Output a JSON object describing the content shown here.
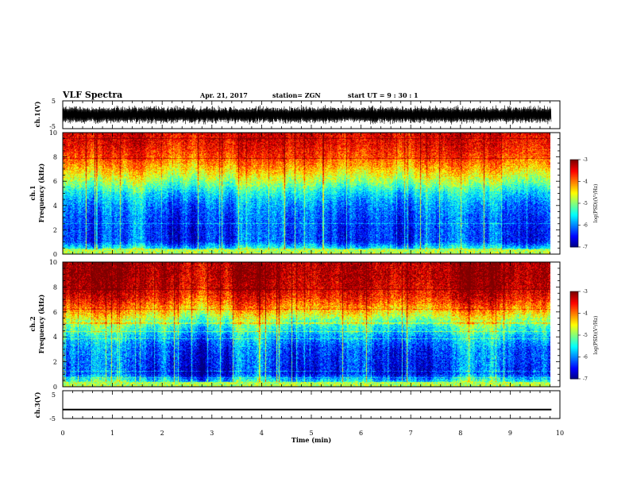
{
  "header": {
    "title": "VLF Spectra",
    "date": "Apr. 21, 2017",
    "station": "station= ZGN",
    "start_ut": "start  UT =   9 : 30 : 1"
  },
  "chart_data": [
    {
      "type": "line",
      "panel": "ch1-waveform",
      "ylabel": "ch.1(V)",
      "yticks": [
        "5",
        "-5"
      ],
      "ylim": [
        -5,
        5
      ],
      "xlim": [
        0,
        10
      ],
      "description_values": "dense oscillating VLF waveform, amplitude about -3.5 to +3.5 V"
    },
    {
      "type": "heatmap",
      "panel": "ch1-spectrogram",
      "ylabel_top": "ch.1",
      "ylabel": "Frequency  (kHz)",
      "yticks": [
        "0",
        "2",
        "4",
        "6",
        "8",
        "10"
      ],
      "ylim": [
        0,
        10
      ],
      "xlim": [
        0,
        9.83
      ],
      "colorbar": {
        "label": "log(PSD)(V²/Hz)",
        "ticks": [
          "-3",
          "-4",
          "-5",
          "-6",
          "-7"
        ],
        "range": [
          -7,
          -3
        ]
      },
      "profile_log_psd_by_freq": [
        {
          "f": 0.2,
          "v": -5.2
        },
        {
          "f": 1,
          "v": -6.3
        },
        {
          "f": 2,
          "v": -6.3
        },
        {
          "f": 3,
          "v": -6.2
        },
        {
          "f": 4,
          "v": -6.0
        },
        {
          "f": 5,
          "v": -5.6
        },
        {
          "f": 6,
          "v": -4.9
        },
        {
          "f": 7,
          "v": -4.3
        },
        {
          "f": 8,
          "v": -3.8
        },
        {
          "f": 9,
          "v": -3.5
        },
        {
          "f": 10,
          "v": -3.4
        }
      ]
    },
    {
      "type": "heatmap",
      "panel": "ch2-spectrogram",
      "ylabel_top": "ch.2",
      "ylabel": "Frequency  (kHz)",
      "yticks": [
        "0",
        "2",
        "4",
        "6",
        "8",
        "10"
      ],
      "ylim": [
        0,
        10
      ],
      "xlim": [
        0,
        9.83
      ],
      "colorbar": {
        "label": "log(PSD)(V²/Hz)",
        "ticks": [
          "-3",
          "-4",
          "-5",
          "-6",
          "-7"
        ],
        "range": [
          -7,
          -3
        ]
      },
      "profile_log_psd_by_freq": [
        {
          "f": 0.2,
          "v": -5.0
        },
        {
          "f": 1,
          "v": -6.3
        },
        {
          "f": 2,
          "v": -6.2
        },
        {
          "f": 3,
          "v": -6.1
        },
        {
          "f": 4,
          "v": -5.7
        },
        {
          "f": 5,
          "v": -5.1
        },
        {
          "f": 6,
          "v": -4.3
        },
        {
          "f": 7,
          "v": -3.6
        },
        {
          "f": 8,
          "v": -3.2
        },
        {
          "f": 9,
          "v": -3.1
        },
        {
          "f": 10,
          "v": -3.1
        }
      ]
    },
    {
      "type": "line",
      "panel": "ch3-waveform",
      "ylabel": "ch.3(V)",
      "yticks": [
        "5",
        "-5"
      ],
      "ylim": [
        -5,
        5
      ],
      "xlim": [
        0,
        10
      ],
      "x": [
        0,
        9.83
      ],
      "y": [
        -1.8,
        -1.8
      ]
    }
  ],
  "xaxis": {
    "label": "Time  (min)",
    "ticks": [
      "0",
      "1",
      "2",
      "3",
      "4",
      "5",
      "6",
      "7",
      "8",
      "9",
      "10"
    ]
  }
}
